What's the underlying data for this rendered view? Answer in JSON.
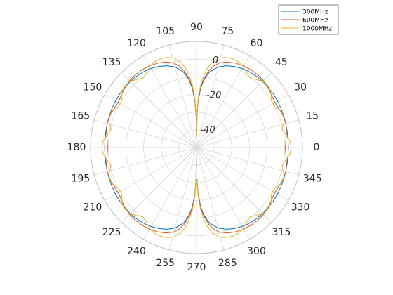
{
  "chart_data": {
    "type": "line",
    "subtype": "polar",
    "title": "",
    "theta_unit": "degrees",
    "theta_ticks": [
      0,
      15,
      30,
      45,
      60,
      75,
      90,
      105,
      120,
      135,
      150,
      165,
      180,
      195,
      210,
      225,
      240,
      255,
      270,
      285,
      300,
      315,
      330,
      345
    ],
    "theta_tick_labels": [
      "0",
      "15",
      "30",
      "45",
      "60",
      "75",
      "90",
      "105",
      "120",
      "135",
      "150",
      "165",
      "180",
      "195",
      "210",
      "225",
      "240",
      "255",
      "270",
      "285",
      "300",
      "315",
      "330",
      "345"
    ],
    "rlim": [
      -50,
      10
    ],
    "r_ticks": [
      -40,
      -30,
      -20,
      -10,
      0,
      10
    ],
    "r_tick_labels_shown": [
      "-40",
      "-20",
      "0"
    ],
    "r_label_angle_deg": 80,
    "grid": true,
    "legend_placement": "top-right",
    "series": [
      {
        "name": "300MHz",
        "color": "#0072BD",
        "theta": [
          0,
          5,
          10,
          15,
          20,
          25,
          30,
          35,
          40,
          45,
          50,
          55,
          60,
          65,
          70,
          75,
          80,
          82,
          84,
          86,
          88,
          89,
          90
        ],
        "r": [
          2.0,
          2.0,
          2.1,
          2.3,
          2.5,
          2.7,
          2.9,
          3.0,
          3.0,
          2.9,
          2.7,
          2.3,
          1.6,
          0.6,
          -0.8,
          -2.8,
          -6.5,
          -9.0,
          -12.0,
          -16.5,
          -24.0,
          -32.0,
          -45.0
        ]
      },
      {
        "name": "600MHz",
        "color": "#D95319",
        "theta": [
          0,
          5,
          10,
          15,
          20,
          25,
          30,
          35,
          40,
          45,
          50,
          55,
          60,
          65,
          70,
          75,
          78,
          81,
          84,
          86,
          88,
          89,
          90
        ],
        "r": [
          0.3,
          0.8,
          1.8,
          2.4,
          2.2,
          1.6,
          1.2,
          1.8,
          2.9,
          3.6,
          3.8,
          3.7,
          3.3,
          2.6,
          1.5,
          -0.5,
          -2.8,
          -6.2,
          -11.0,
          -15.5,
          -23.0,
          -31.0,
          -45.0
        ]
      },
      {
        "name": "1000MHz",
        "color": "#EDB120",
        "theta": [
          0,
          4,
          8,
          12,
          16,
          20,
          24,
          28,
          32,
          36,
          40,
          44,
          48,
          52,
          56,
          60,
          64,
          68,
          72,
          76,
          80,
          83,
          86,
          88,
          89,
          90
        ],
        "r": [
          3.6,
          3.0,
          1.0,
          -0.6,
          1.4,
          2.6,
          1.8,
          -0.2,
          0.0,
          2.2,
          3.4,
          3.2,
          1.6,
          -0.4,
          0.8,
          3.0,
          4.0,
          4.2,
          3.6,
          2.2,
          -1.5,
          -6.0,
          -13.5,
          -22.0,
          -31.0,
          -45.0
        ]
      }
    ]
  }
}
